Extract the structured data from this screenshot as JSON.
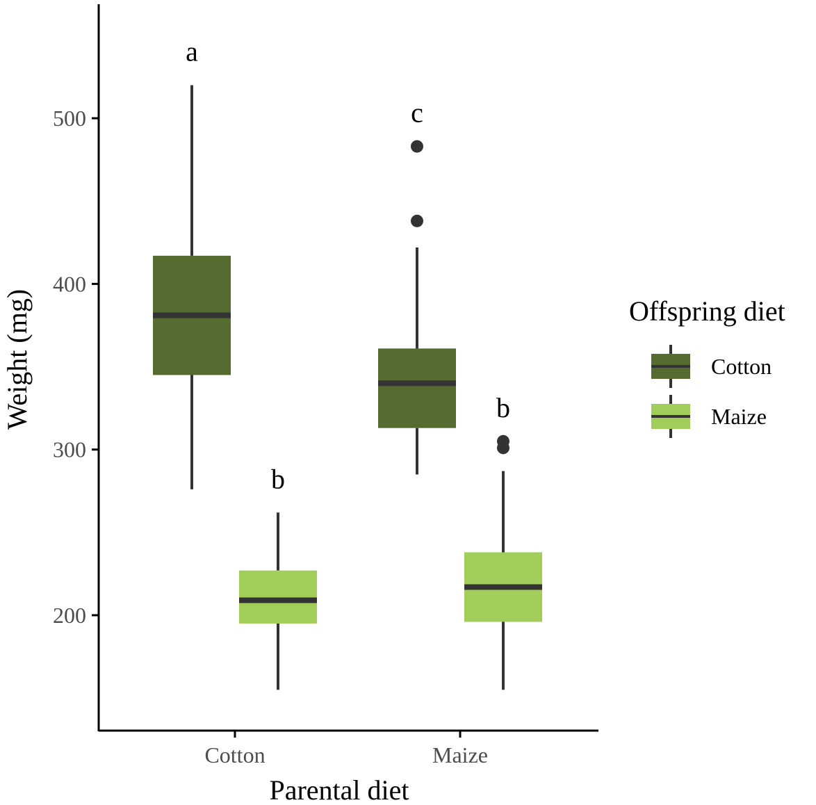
{
  "chart_data": {
    "type": "boxplot",
    "xlabel": "Parental diet",
    "ylabel": "Weight (mg)",
    "ylim": [
      130,
      570
    ],
    "yticks": [
      200,
      300,
      400,
      500
    ],
    "categories": [
      "Cotton",
      "Maize"
    ],
    "legend": {
      "title": "Offspring diet",
      "position": "right",
      "entries": [
        {
          "name": "Cotton",
          "color": "#556b2f"
        },
        {
          "name": "Maize",
          "color": "#a2cd5a"
        }
      ]
    },
    "median_color": "#333333",
    "series": [
      {
        "name": "Cotton",
        "color": "#556b2f",
        "boxes": [
          {
            "category": "Cotton",
            "whisker_low": 276,
            "q1": 345,
            "median": 381,
            "q3": 417,
            "whisker_high": 520,
            "outliers": [],
            "letter": "a"
          },
          {
            "category": "Maize",
            "whisker_low": 285,
            "q1": 313,
            "median": 340,
            "q3": 361,
            "whisker_high": 422,
            "outliers": [
              438,
              483
            ],
            "letter": "c"
          }
        ]
      },
      {
        "name": "Maize",
        "color": "#a2cd5a",
        "boxes": [
          {
            "category": "Cotton",
            "whisker_low": 155,
            "q1": 195,
            "median": 209,
            "q3": 227,
            "whisker_high": 262,
            "outliers": [],
            "letter": "b"
          },
          {
            "category": "Maize",
            "whisker_low": 155,
            "q1": 196,
            "median": 217,
            "q3": 238,
            "whisker_high": 287,
            "outliers": [
              301,
              305
            ],
            "letter": "b"
          }
        ]
      }
    ]
  }
}
